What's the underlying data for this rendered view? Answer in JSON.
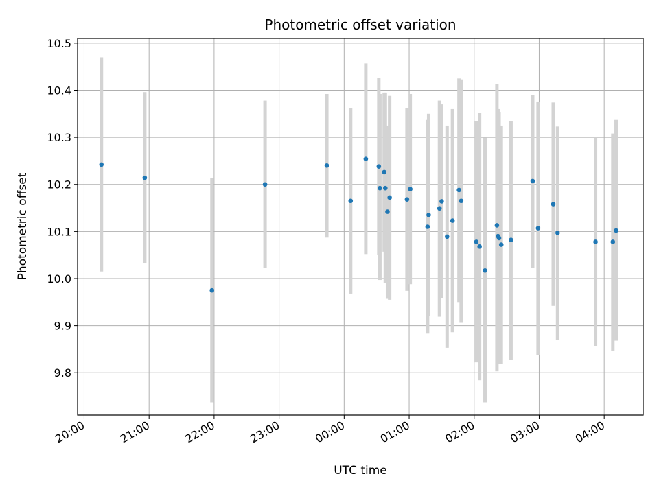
{
  "chart_data": {
    "type": "scatter",
    "title": "Photometric offset variation",
    "xlabel": "UTC time",
    "ylabel": "Photometric offset",
    "x_tick_labels": [
      "20:00",
      "21:00",
      "22:00",
      "23:00",
      "00:00",
      "01:00",
      "02:00",
      "03:00",
      "04:00"
    ],
    "y_ticks": [
      9.8,
      9.9,
      10.0,
      10.1,
      10.2,
      10.3,
      10.4,
      10.5
    ],
    "y_tick_labels": [
      "9.8",
      "9.9",
      "10.0",
      "10.1",
      "10.2",
      "10.3",
      "10.4",
      "10.5"
    ],
    "ylim": [
      9.71,
      10.51
    ],
    "xlim": [
      "19:54",
      "04:36"
    ],
    "grid": true,
    "colors": {
      "point": "#1f77b4",
      "errorbar": "#d3d3d3",
      "grid": "#b0b0b0"
    },
    "points": [
      {
        "x": "20:16",
        "y": 10.242,
        "ylow": 10.015,
        "yhigh": 10.47
      },
      {
        "x": "20:56",
        "y": 10.214,
        "ylow": 10.032,
        "yhigh": 10.396
      },
      {
        "x": "21:58",
        "y": 9.975,
        "ylow": 9.737,
        "yhigh": 10.214
      },
      {
        "x": "22:47",
        "y": 10.2,
        "ylow": 10.022,
        "yhigh": 10.378
      },
      {
        "x": "23:44",
        "y": 10.24,
        "ylow": 10.087,
        "yhigh": 10.392
      },
      {
        "x": "00:06",
        "y": 10.165,
        "ylow": 9.968,
        "yhigh": 10.362
      },
      {
        "x": "00:20",
        "y": 10.254,
        "ylow": 10.052,
        "yhigh": 10.457
      },
      {
        "x": "00:32",
        "y": 10.238,
        "ylow": 10.05,
        "yhigh": 10.426
      },
      {
        "x": "00:33",
        "y": 10.192,
        "ylow": 9.997,
        "yhigh": 10.392
      },
      {
        "x": "00:37",
        "y": 10.226,
        "ylow": 10.057,
        "yhigh": 10.395
      },
      {
        "x": "00:38",
        "y": 10.192,
        "ylow": 9.99,
        "yhigh": 10.395
      },
      {
        "x": "00:40",
        "y": 10.142,
        "ylow": 9.957,
        "yhigh": 10.325
      },
      {
        "x": "00:42",
        "y": 10.172,
        "ylow": 9.955,
        "yhigh": 10.388
      },
      {
        "x": "00:58",
        "y": 10.168,
        "ylow": 9.974,
        "yhigh": 10.362
      },
      {
        "x": "01:01",
        "y": 10.19,
        "ylow": 9.988,
        "yhigh": 10.392
      },
      {
        "x": "01:17",
        "y": 10.11,
        "ylow": 9.883,
        "yhigh": 10.337
      },
      {
        "x": "01:18",
        "y": 10.135,
        "ylow": 9.92,
        "yhigh": 10.35
      },
      {
        "x": "01:28",
        "y": 10.149,
        "ylow": 9.919,
        "yhigh": 10.378
      },
      {
        "x": "01:30",
        "y": 10.164,
        "ylow": 9.958,
        "yhigh": 10.37
      },
      {
        "x": "01:35",
        "y": 10.089,
        "ylow": 9.853,
        "yhigh": 10.325
      },
      {
        "x": "01:40",
        "y": 10.123,
        "ylow": 9.886,
        "yhigh": 10.36
      },
      {
        "x": "01:46",
        "y": 10.188,
        "ylow": 9.95,
        "yhigh": 10.425
      },
      {
        "x": "01:48",
        "y": 10.165,
        "ylow": 9.906,
        "yhigh": 10.423
      },
      {
        "x": "02:02",
        "y": 10.078,
        "ylow": 9.822,
        "yhigh": 10.334
      },
      {
        "x": "02:05",
        "y": 10.068,
        "ylow": 9.784,
        "yhigh": 10.352
      },
      {
        "x": "02:10",
        "y": 10.017,
        "ylow": 9.737,
        "yhigh": 10.299
      },
      {
        "x": "02:21",
        "y": 10.113,
        "ylow": 9.803,
        "yhigh": 10.413
      },
      {
        "x": "02:22",
        "y": 10.09,
        "ylow": 9.82,
        "yhigh": 10.36
      },
      {
        "x": "02:23",
        "y": 10.086,
        "ylow": 9.818,
        "yhigh": 10.354
      },
      {
        "x": "02:25",
        "y": 10.072,
        "ylow": 9.818,
        "yhigh": 10.325
      },
      {
        "x": "02:34",
        "y": 10.082,
        "ylow": 9.828,
        "yhigh": 10.335
      },
      {
        "x": "02:54",
        "y": 10.207,
        "ylow": 10.023,
        "yhigh": 10.39
      },
      {
        "x": "02:59",
        "y": 10.107,
        "ylow": 9.838,
        "yhigh": 10.376
      },
      {
        "x": "03:13",
        "y": 10.158,
        "ylow": 9.942,
        "yhigh": 10.374
      },
      {
        "x": "03:17",
        "y": 10.097,
        "ylow": 9.87,
        "yhigh": 10.323
      },
      {
        "x": "03:52",
        "y": 10.078,
        "ylow": 9.856,
        "yhigh": 10.3
      },
      {
        "x": "04:08",
        "y": 10.078,
        "ylow": 9.847,
        "yhigh": 10.308
      },
      {
        "x": "04:11",
        "y": 10.102,
        "ylow": 9.868,
        "yhigh": 10.337
      }
    ]
  }
}
